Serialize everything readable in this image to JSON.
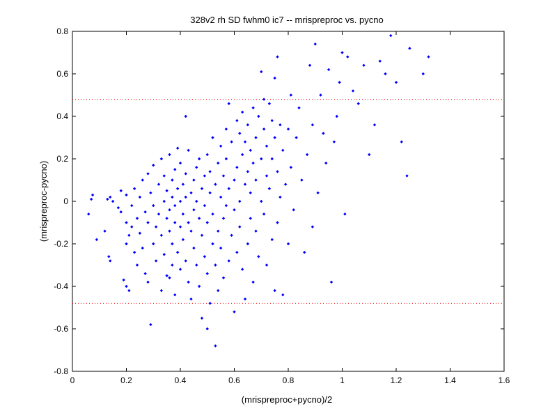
{
  "chart_data": {
    "type": "scatter",
    "title": "328v2 rh SD fwhm0 ic7 -- mrispreproc vs. pycno",
    "xlabel": "(mrispreproc+pycno)/2",
    "ylabel": "(mrispreproc-pycno)",
    "xlim": [
      0,
      1.6
    ],
    "ylim": [
      -0.8,
      0.8
    ],
    "xticks": [
      "0",
      "0.2",
      "0.4",
      "0.6",
      "0.8",
      "1",
      "1.2",
      "1.4",
      "1.6"
    ],
    "yticks": [
      "-0.8",
      "-0.6",
      "-0.4",
      "-0.2",
      "0",
      "0.2",
      "0.4",
      "0.6",
      "0.8"
    ],
    "grid": false,
    "legend": false,
    "marker_color": "#0000ff",
    "reference_line_color": "#ff0000",
    "reference_lines": [
      0.48,
      -0.48
    ],
    "series": [
      {
        "points": [
          [
            0.06,
            -0.06
          ],
          [
            0.07,
            0.01
          ],
          [
            0.075,
            0.03
          ],
          [
            0.09,
            -0.18
          ],
          [
            0.12,
            -0.14
          ],
          [
            0.13,
            0.01
          ],
          [
            0.135,
            -0.26
          ],
          [
            0.14,
            -0.28
          ],
          [
            0.14,
            0.02
          ],
          [
            0.15,
            0.0
          ],
          [
            0.17,
            -0.03
          ],
          [
            0.18,
            -0.05
          ],
          [
            0.18,
            0.05
          ],
          [
            0.19,
            -0.37
          ],
          [
            0.2,
            -0.4
          ],
          [
            0.2,
            -0.1
          ],
          [
            0.2,
            -0.2
          ],
          [
            0.2,
            0.03
          ],
          [
            0.21,
            -0.42
          ],
          [
            0.21,
            -0.16
          ],
          [
            0.22,
            -0.02
          ],
          [
            0.22,
            -0.12
          ],
          [
            0.23,
            -0.24
          ],
          [
            0.23,
            0.06
          ],
          [
            0.24,
            -0.08
          ],
          [
            0.24,
            -0.3
          ],
          [
            0.25,
            0.02
          ],
          [
            0.25,
            -0.15
          ],
          [
            0.26,
            -0.22
          ],
          [
            0.26,
            0.1
          ],
          [
            0.27,
            -0.05
          ],
          [
            0.27,
            -0.34
          ],
          [
            0.28,
            0.13
          ],
          [
            0.28,
            -0.1
          ],
          [
            0.28,
            -0.38
          ],
          [
            0.29,
            -0.58
          ],
          [
            0.29,
            0.04
          ],
          [
            0.3,
            -0.2
          ],
          [
            0.3,
            0.17
          ],
          [
            0.3,
            -0.02
          ],
          [
            0.31,
            -0.12
          ],
          [
            0.31,
            -0.28
          ],
          [
            0.32,
            0.08
          ],
          [
            0.32,
            -0.06
          ],
          [
            0.33,
            0.2
          ],
          [
            0.33,
            -0.16
          ],
          [
            0.33,
            -0.42
          ],
          [
            0.34,
            0.0
          ],
          [
            0.34,
            -0.25
          ],
          [
            0.34,
            0.12
          ],
          [
            0.35,
            -0.08
          ],
          [
            0.35,
            -0.35
          ],
          [
            0.35,
            0.05
          ],
          [
            0.36,
            -0.14
          ],
          [
            0.36,
            0.22
          ],
          [
            0.36,
            -0.04
          ],
          [
            0.36,
            -0.36
          ],
          [
            0.37,
            0.1
          ],
          [
            0.37,
            -0.2
          ],
          [
            0.37,
            0.02
          ],
          [
            0.37,
            -0.3
          ],
          [
            0.38,
            -0.1
          ],
          [
            0.38,
            0.15
          ],
          [
            0.38,
            -0.02
          ],
          [
            0.38,
            -0.44
          ],
          [
            0.39,
            0.06
          ],
          [
            0.39,
            -0.24
          ],
          [
            0.39,
            0.25
          ],
          [
            0.4,
            -0.12
          ],
          [
            0.4,
            0.0
          ],
          [
            0.4,
            -0.32
          ],
          [
            0.4,
            0.18
          ],
          [
            0.41,
            -0.06
          ],
          [
            0.41,
            0.08
          ],
          [
            0.41,
            -0.18
          ],
          [
            0.42,
            0.4
          ],
          [
            0.42,
            0.02
          ],
          [
            0.42,
            -0.28
          ],
          [
            0.42,
            0.13
          ],
          [
            0.43,
            -0.1
          ],
          [
            0.43,
            -0.38
          ],
          [
            0.43,
            0.24
          ],
          [
            0.44,
            0.04
          ],
          [
            0.44,
            -0.14
          ],
          [
            0.44,
            -0.46
          ],
          [
            0.45,
            0.1
          ],
          [
            0.45,
            -0.04
          ],
          [
            0.45,
            -0.22
          ],
          [
            0.46,
            0.16
          ],
          [
            0.46,
            -0.3
          ],
          [
            0.46,
            0.0
          ],
          [
            0.47,
            -0.08
          ],
          [
            0.47,
            0.2
          ],
          [
            0.47,
            -0.4
          ],
          [
            0.48,
            0.06
          ],
          [
            0.48,
            -0.16
          ],
          [
            0.48,
            -0.55
          ],
          [
            0.49,
            0.12
          ],
          [
            0.49,
            -0.26
          ],
          [
            0.49,
            -0.02
          ],
          [
            0.5,
            -0.6
          ],
          [
            0.5,
            0.22
          ],
          [
            0.5,
            -0.1
          ],
          [
            0.5,
            -0.34
          ],
          [
            0.51,
            0.04
          ],
          [
            0.51,
            -0.48
          ],
          [
            0.51,
            0.14
          ],
          [
            0.52,
            -0.2
          ],
          [
            0.52,
            -0.06
          ],
          [
            0.52,
            0.3
          ],
          [
            0.53,
            -0.68
          ],
          [
            0.53,
            -0.3
          ],
          [
            0.53,
            0.08
          ],
          [
            0.54,
            -0.14
          ],
          [
            0.54,
            0.18
          ],
          [
            0.54,
            -0.42
          ],
          [
            0.55,
            0.02
          ],
          [
            0.55,
            0.26
          ],
          [
            0.55,
            -0.22
          ],
          [
            0.56,
            -0.08
          ],
          [
            0.56,
            0.12
          ],
          [
            0.56,
            -0.36
          ],
          [
            0.57,
            0.34
          ],
          [
            0.57,
            -0.02
          ],
          [
            0.57,
            0.2
          ],
          [
            0.58,
            -0.28
          ],
          [
            0.58,
            0.06
          ],
          [
            0.58,
            0.46
          ],
          [
            0.59,
            -0.16
          ],
          [
            0.59,
            0.28
          ],
          [
            0.6,
            0.1
          ],
          [
            0.6,
            -0.52
          ],
          [
            0.6,
            -0.04
          ],
          [
            0.61,
            0.38
          ],
          [
            0.61,
            -0.24
          ],
          [
            0.61,
            0.16
          ],
          [
            0.62,
            0.0
          ],
          [
            0.62,
            -0.12
          ],
          [
            0.62,
            0.32
          ],
          [
            0.63,
            0.42
          ],
          [
            0.63,
            -0.32
          ],
          [
            0.63,
            0.22
          ],
          [
            0.64,
            -0.46
          ],
          [
            0.64,
            0.08
          ],
          [
            0.64,
            0.28
          ],
          [
            0.65,
            -0.2
          ],
          [
            0.65,
            0.14
          ],
          [
            0.65,
            0.36
          ],
          [
            0.66,
            0.04
          ],
          [
            0.66,
            -0.08
          ],
          [
            0.66,
            0.24
          ],
          [
            0.67,
            -0.38
          ],
          [
            0.67,
            0.44
          ],
          [
            0.67,
            0.18
          ],
          [
            0.68,
            -0.14
          ],
          [
            0.68,
            0.3
          ],
          [
            0.68,
            0.1
          ],
          [
            0.69,
            -0.26
          ],
          [
            0.69,
            0.4
          ],
          [
            0.7,
            0.61
          ],
          [
            0.7,
            0.0
          ],
          [
            0.7,
            0.2
          ],
          [
            0.71,
            -0.06
          ],
          [
            0.71,
            0.34
          ],
          [
            0.71,
            0.48
          ],
          [
            0.72,
            0.12
          ],
          [
            0.72,
            -0.3
          ],
          [
            0.72,
            0.26
          ],
          [
            0.73,
            0.46
          ],
          [
            0.73,
            0.06
          ],
          [
            0.74,
            -0.18
          ],
          [
            0.74,
            0.38
          ],
          [
            0.74,
            0.2
          ],
          [
            0.75,
            0.58
          ],
          [
            0.75,
            -0.42
          ],
          [
            0.75,
            0.3
          ],
          [
            0.76,
            0.68
          ],
          [
            0.76,
            0.14
          ],
          [
            0.76,
            -0.1
          ],
          [
            0.77,
            0.36
          ],
          [
            0.77,
            0.02
          ],
          [
            0.78,
            0.24
          ],
          [
            0.78,
            -0.44
          ],
          [
            0.79,
            0.08
          ],
          [
            0.8,
            0.34
          ],
          [
            0.8,
            -0.2
          ],
          [
            0.81,
            0.5
          ],
          [
            0.81,
            0.16
          ],
          [
            0.82,
            -0.04
          ],
          [
            0.83,
            0.3
          ],
          [
            0.84,
            0.44
          ],
          [
            0.85,
            0.1
          ],
          [
            0.86,
            -0.24
          ],
          [
            0.87,
            0.22
          ],
          [
            0.88,
            0.64
          ],
          [
            0.89,
            0.36
          ],
          [
            0.89,
            -0.12
          ],
          [
            0.9,
            0.74
          ],
          [
            0.91,
            0.04
          ],
          [
            0.92,
            0.5
          ],
          [
            0.93,
            0.32
          ],
          [
            0.94,
            0.18
          ],
          [
            0.95,
            0.62
          ],
          [
            0.96,
            -0.38
          ],
          [
            0.97,
            0.28
          ],
          [
            0.98,
            0.4
          ],
          [
            0.99,
            0.56
          ],
          [
            1.0,
            0.7
          ],
          [
            1.01,
            -0.06
          ],
          [
            1.02,
            0.68
          ],
          [
            1.04,
            0.52
          ],
          [
            1.06,
            0.46
          ],
          [
            1.08,
            0.64
          ],
          [
            1.1,
            0.22
          ],
          [
            1.12,
            0.36
          ],
          [
            1.14,
            0.66
          ],
          [
            1.16,
            0.6
          ],
          [
            1.18,
            0.78
          ],
          [
            1.2,
            0.56
          ],
          [
            1.22,
            0.28
          ],
          [
            1.24,
            0.12
          ],
          [
            1.25,
            0.72
          ],
          [
            1.3,
            0.6
          ],
          [
            1.32,
            0.68
          ]
        ]
      }
    ]
  }
}
